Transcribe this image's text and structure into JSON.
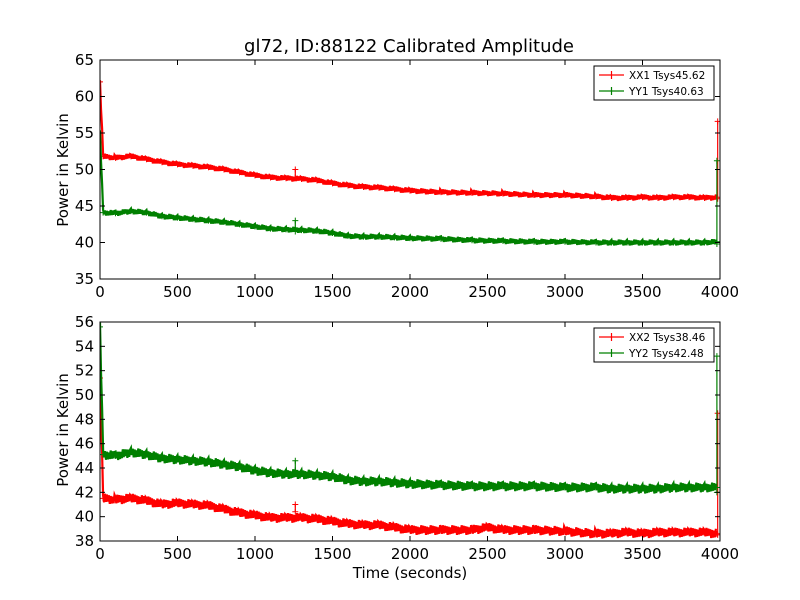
{
  "chart_data": [
    {
      "type": "line",
      "title": "gl72, ID:88122 Calibrated Amplitude",
      "xlabel": "",
      "ylabel": "Power in Kelvin",
      "xlim": [
        0,
        4000
      ],
      "ylim": [
        35,
        65
      ],
      "xticks": [
        0,
        500,
        1000,
        1500,
        2000,
        2500,
        3000,
        3500,
        4000
      ],
      "yticks": [
        35,
        40,
        45,
        50,
        55,
        60,
        65
      ],
      "legend_position": "top-right",
      "grid": false,
      "series": [
        {
          "name": "XX1 Tsys45.62",
          "color": "#ff0000",
          "x": [
            0,
            20,
            100,
            200,
            300,
            400,
            500,
            600,
            700,
            800,
            900,
            1000,
            1100,
            1200,
            1300,
            1400,
            1500,
            1600,
            1700,
            1800,
            1900,
            2000,
            2200,
            2400,
            2600,
            2800,
            3000,
            3200,
            3300,
            3400,
            3500,
            3600,
            3700,
            3800,
            3900,
            3980
          ],
          "y": [
            62.0,
            51.8,
            51.6,
            51.8,
            51.4,
            51.0,
            50.7,
            50.5,
            50.3,
            50.0,
            49.6,
            49.2,
            48.9,
            48.8,
            48.7,
            48.5,
            48.1,
            47.8,
            47.6,
            47.5,
            47.3,
            47.1,
            46.9,
            46.8,
            46.7,
            46.5,
            46.5,
            46.3,
            46.1,
            46.1,
            46.2,
            46.1,
            46.2,
            46.2,
            46.1,
            46.2
          ],
          "spikes": [
            {
              "x": 1260,
              "y": [
                48.9,
                50.0
              ]
            },
            {
              "x": 3985,
              "y": [
                46.0,
                56.6
              ]
            }
          ]
        },
        {
          "name": "YY1 Tsys40.63",
          "color": "#008000",
          "x": [
            0,
            20,
            100,
            200,
            300,
            400,
            500,
            600,
            700,
            800,
            900,
            1000,
            1100,
            1200,
            1300,
            1400,
            1500,
            1600,
            1700,
            1800,
            1900,
            2000,
            2200,
            2400,
            2600,
            2800,
            3000,
            3200,
            3300,
            3400,
            3500,
            3600,
            3700,
            3800,
            3900,
            3980
          ],
          "y": [
            55.0,
            44.1,
            44.0,
            44.3,
            44.1,
            43.6,
            43.4,
            43.2,
            43.0,
            42.8,
            42.5,
            42.2,
            41.9,
            41.8,
            41.7,
            41.6,
            41.3,
            40.9,
            40.8,
            40.8,
            40.7,
            40.6,
            40.5,
            40.3,
            40.2,
            40.1,
            40.1,
            40.0,
            40.0,
            40.0,
            40.0,
            40.0,
            40.0,
            40.0,
            40.0,
            40.1
          ],
          "spikes": [
            {
              "x": 1260,
              "y": [
                41.5,
                43.0
              ]
            },
            {
              "x": 3980,
              "y": [
                39.8,
                51.2
              ]
            }
          ]
        }
      ]
    },
    {
      "type": "line",
      "title": "",
      "xlabel": "Time (seconds)",
      "ylabel": "Power in Kelvin",
      "xlim": [
        0,
        4000
      ],
      "ylim": [
        38,
        56
      ],
      "xticks": [
        0,
        500,
        1000,
        1500,
        2000,
        2500,
        3000,
        3500,
        4000
      ],
      "yticks": [
        38,
        40,
        42,
        44,
        46,
        48,
        50,
        52,
        54,
        56
      ],
      "legend_position": "top-right",
      "grid": false,
      "series": [
        {
          "name": "XX2 Tsys38.46",
          "color": "#ff0000",
          "x": [
            0,
            20,
            100,
            200,
            300,
            400,
            500,
            600,
            700,
            800,
            900,
            1000,
            1100,
            1200,
            1300,
            1400,
            1500,
            1600,
            1700,
            1800,
            1900,
            2000,
            2200,
            2400,
            2500,
            2600,
            2800,
            3000,
            3200,
            3300,
            3400,
            3500,
            3600,
            3700,
            3800,
            3900,
            3980
          ],
          "y": [
            51.4,
            41.5,
            41.4,
            41.5,
            41.3,
            41.0,
            41.1,
            41.0,
            40.9,
            40.6,
            40.3,
            40.1,
            39.9,
            39.9,
            39.9,
            39.8,
            39.6,
            39.4,
            39.3,
            39.3,
            39.1,
            38.9,
            38.9,
            38.9,
            39.1,
            38.9,
            38.9,
            38.8,
            38.6,
            38.6,
            38.7,
            38.6,
            38.7,
            38.7,
            38.7,
            38.7,
            38.6
          ],
          "spikes": [
            {
              "x": 1260,
              "y": [
                40.4,
                41.0
              ]
            },
            {
              "x": 3985,
              "y": [
                38.5,
                48.5
              ]
            }
          ]
        },
        {
          "name": "YY2 Tsys42.48",
          "color": "#008000",
          "x": [
            0,
            20,
            100,
            200,
            300,
            400,
            500,
            600,
            700,
            800,
            900,
            1000,
            1100,
            1200,
            1300,
            1400,
            1500,
            1600,
            1700,
            1800,
            1900,
            2000,
            2200,
            2400,
            2600,
            2800,
            3000,
            3200,
            3300,
            3400,
            3500,
            3600,
            3700,
            3800,
            3900,
            3980
          ],
          "y": [
            55.6,
            45.1,
            45.0,
            45.3,
            45.1,
            44.8,
            44.7,
            44.6,
            44.5,
            44.3,
            44.1,
            43.8,
            43.6,
            43.5,
            43.5,
            43.4,
            43.3,
            43.0,
            42.9,
            42.9,
            42.8,
            42.7,
            42.6,
            42.5,
            42.5,
            42.5,
            42.4,
            42.4,
            42.3,
            42.3,
            42.3,
            42.3,
            42.4,
            42.4,
            42.4,
            42.4
          ],
          "spikes": [
            {
              "x": 1260,
              "y": [
                43.8,
                44.6
              ]
            },
            {
              "x": 3980,
              "y": [
                42.0,
                53.2
              ]
            }
          ]
        }
      ]
    }
  ]
}
